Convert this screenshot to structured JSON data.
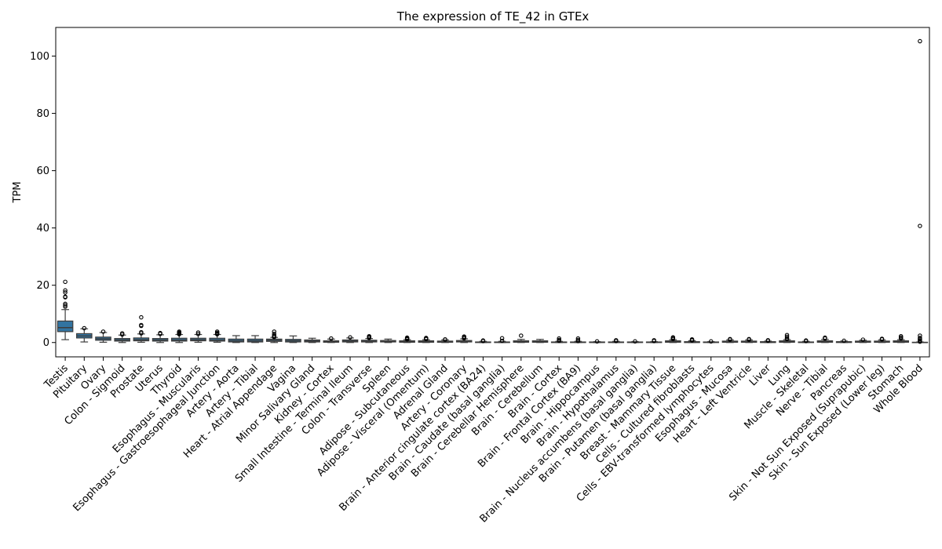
{
  "chart_data": {
    "type": "box",
    "title": "The expression of TE_42 in GTEx",
    "xlabel": "",
    "ylabel": "TPM",
    "ylim": [
      -5,
      110
    ],
    "yticks": [
      0,
      20,
      40,
      60,
      80,
      100
    ],
    "grid": false,
    "box_color": "#3274a1",
    "categories": [
      "Testis",
      "Pituitary",
      "Ovary",
      "Colon - Sigmoid",
      "Prostate",
      "Uterus",
      "Thyroid",
      "Esophagus - Muscularis",
      "Esophagus - Gastroesophageal Junction",
      "Artery - Aorta",
      "Artery - Tibial",
      "Heart - Atrial Appendage",
      "Vagina",
      "Minor Salivary Gland",
      "Kidney - Cortex",
      "Small Intestine - Terminal Ileum",
      "Colon - Transverse",
      "Spleen",
      "Adipose - Subcutaneous",
      "Adipose - Visceral (Omentum)",
      "Adrenal Gland",
      "Artery - Coronary",
      "Brain - Anterior cingulate cortex (BA24)",
      "Brain - Caudate (basal ganglia)",
      "Brain - Cerebellar Hemisphere",
      "Brain - Cerebellum",
      "Brain - Cortex",
      "Brain - Frontal Cortex (BA9)",
      "Brain - Hippocampus",
      "Brain - Hypothalamus",
      "Brain - Nucleus accumbens (basal ganglia)",
      "Brain - Putamen (basal ganglia)",
      "Breast - Mammary Tissue",
      "Cells - Cultured fibroblasts",
      "Cells - EBV-transformed lymphocytes",
      "Esophagus - Mucosa",
      "Heart - Left Ventricle",
      "Liver",
      "Lung",
      "Muscle - Skeletal",
      "Nerve - Tibial",
      "Pancreas",
      "Skin - Not Sun Exposed (Suprapubic)",
      "Skin - Sun Exposed (Lower leg)",
      "Stomach",
      "Whole Blood"
    ],
    "boxes": [
      {
        "whislo": 1.0,
        "q1": 3.8,
        "med": 5.2,
        "q3": 7.5,
        "whishi": 11.5,
        "fliers": [
          12.5,
          13.0,
          13.5,
          15.8,
          16.0,
          17.5,
          18.2,
          21.2
        ]
      },
      {
        "whislo": 0.2,
        "q1": 1.6,
        "med": 2.3,
        "q3": 3.1,
        "whishi": 4.8,
        "fliers": [
          5.0
        ]
      },
      {
        "whislo": 0.1,
        "q1": 0.8,
        "med": 1.3,
        "q3": 1.9,
        "whishi": 3.5,
        "fliers": [
          3.8
        ]
      },
      {
        "whislo": 0.0,
        "q1": 0.5,
        "med": 0.9,
        "q3": 1.4,
        "whishi": 2.6,
        "fliers": [
          2.8,
          3.2
        ]
      },
      {
        "whislo": 0.1,
        "q1": 0.6,
        "med": 1.0,
        "q3": 1.6,
        "whishi": 3.0,
        "fliers": [
          3.2,
          3.6,
          5.8,
          6.1,
          8.8
        ]
      },
      {
        "whislo": 0.0,
        "q1": 0.5,
        "med": 0.9,
        "q3": 1.4,
        "whishi": 2.7,
        "fliers": [
          3.0,
          3.3
        ]
      },
      {
        "whislo": 0.0,
        "q1": 0.5,
        "med": 0.9,
        "q3": 1.5,
        "whishi": 2.8,
        "fliers": [
          2.9,
          3.1,
          3.3,
          3.5,
          3.8
        ]
      },
      {
        "whislo": 0.1,
        "q1": 0.6,
        "med": 1.0,
        "q3": 1.5,
        "whishi": 2.8,
        "fliers": [
          3.0,
          3.5
        ]
      },
      {
        "whislo": 0.1,
        "q1": 0.5,
        "med": 0.9,
        "q3": 1.5,
        "whishi": 2.8,
        "fliers": [
          2.9,
          3.1,
          3.4,
          3.8
        ]
      },
      {
        "whislo": 0.0,
        "q1": 0.2,
        "med": 0.6,
        "q3": 1.2,
        "whishi": 2.4,
        "fliers": []
      },
      {
        "whislo": 0.0,
        "q1": 0.2,
        "med": 0.6,
        "q3": 1.2,
        "whishi": 2.4,
        "fliers": []
      },
      {
        "whislo": 0.0,
        "q1": 0.4,
        "med": 0.8,
        "q3": 1.2,
        "whishi": 1.8,
        "fliers": [
          1.9,
          2.1,
          2.4,
          3.0,
          3.8
        ]
      },
      {
        "whislo": 0.0,
        "q1": 0.2,
        "med": 0.6,
        "q3": 1.1,
        "whishi": 2.3,
        "fliers": []
      },
      {
        "whislo": 0.0,
        "q1": 0.2,
        "med": 0.5,
        "q3": 0.9,
        "whishi": 1.5,
        "fliers": []
      },
      {
        "whislo": 0.0,
        "q1": 0.1,
        "med": 0.3,
        "q3": 0.6,
        "whishi": 1.2,
        "fliers": [
          1.4
        ]
      },
      {
        "whislo": 0.0,
        "q1": 0.2,
        "med": 0.5,
        "q3": 0.9,
        "whishi": 1.6,
        "fliers": [
          1.8
        ]
      },
      {
        "whislo": 0.0,
        "q1": 0.2,
        "med": 0.4,
        "q3": 0.8,
        "whishi": 1.4,
        "fliers": [
          1.6,
          1.8,
          2.0,
          2.2
        ]
      },
      {
        "whislo": 0.0,
        "q1": 0.2,
        "med": 0.4,
        "q3": 0.7,
        "whishi": 1.2,
        "fliers": []
      },
      {
        "whislo": 0.0,
        "q1": 0.1,
        "med": 0.3,
        "q3": 0.6,
        "whishi": 1.0,
        "fliers": [
          1.1,
          1.3,
          1.5,
          1.7
        ]
      },
      {
        "whislo": 0.0,
        "q1": 0.1,
        "med": 0.3,
        "q3": 0.6,
        "whishi": 1.0,
        "fliers": [
          1.2,
          1.4,
          1.6
        ]
      },
      {
        "whislo": 0.0,
        "q1": 0.1,
        "med": 0.3,
        "q3": 0.5,
        "whishi": 0.9,
        "fliers": [
          1.0,
          1.1
        ]
      },
      {
        "whislo": 0.0,
        "q1": 0.2,
        "med": 0.4,
        "q3": 0.7,
        "whishi": 1.3,
        "fliers": [
          1.5,
          1.8,
          2.1
        ]
      },
      {
        "whislo": 0.0,
        "q1": 0.0,
        "med": 0.1,
        "q3": 0.2,
        "whishi": 0.4,
        "fliers": [
          0.5,
          0.7
        ]
      },
      {
        "whislo": 0.0,
        "q1": 0.0,
        "med": 0.1,
        "q3": 0.2,
        "whishi": 0.4,
        "fliers": [
          0.6,
          1.5
        ]
      },
      {
        "whislo": 0.0,
        "q1": 0.1,
        "med": 0.3,
        "q3": 0.6,
        "whishi": 1.1,
        "fliers": [
          2.4
        ]
      },
      {
        "whislo": 0.0,
        "q1": 0.1,
        "med": 0.3,
        "q3": 0.6,
        "whishi": 1.1,
        "fliers": []
      },
      {
        "whislo": 0.0,
        "q1": 0.0,
        "med": 0.1,
        "q3": 0.2,
        "whishi": 0.4,
        "fliers": [
          0.6,
          0.9,
          1.4
        ]
      },
      {
        "whislo": 0.0,
        "q1": 0.0,
        "med": 0.1,
        "q3": 0.2,
        "whishi": 0.4,
        "fliers": [
          0.5,
          0.9,
          1.4
        ]
      },
      {
        "whislo": 0.0,
        "q1": 0.0,
        "med": 0.1,
        "q3": 0.2,
        "whishi": 0.3,
        "fliers": [
          0.4
        ]
      },
      {
        "whislo": 0.0,
        "q1": 0.0,
        "med": 0.1,
        "q3": 0.2,
        "whishi": 0.4,
        "fliers": [
          0.5,
          0.8
        ]
      },
      {
        "whislo": 0.0,
        "q1": 0.0,
        "med": 0.1,
        "q3": 0.2,
        "whishi": 0.3,
        "fliers": [
          0.4
        ]
      },
      {
        "whislo": 0.0,
        "q1": 0.0,
        "med": 0.1,
        "q3": 0.2,
        "whishi": 0.3,
        "fliers": [
          0.5,
          0.8
        ]
      },
      {
        "whislo": 0.0,
        "q1": 0.1,
        "med": 0.3,
        "q3": 0.6,
        "whishi": 1.0,
        "fliers": [
          1.2,
          1.5,
          1.8
        ]
      },
      {
        "whislo": 0.0,
        "q1": 0.0,
        "med": 0.1,
        "q3": 0.3,
        "whishi": 0.6,
        "fliers": [
          0.7,
          0.9,
          1.1
        ]
      },
      {
        "whislo": 0.0,
        "q1": 0.0,
        "med": 0.1,
        "q3": 0.2,
        "whishi": 0.3,
        "fliers": [
          0.4
        ]
      },
      {
        "whislo": 0.0,
        "q1": 0.1,
        "med": 0.2,
        "q3": 0.5,
        "whishi": 0.9,
        "fliers": [
          1.0,
          1.2
        ]
      },
      {
        "whislo": 0.0,
        "q1": 0.1,
        "med": 0.2,
        "q3": 0.5,
        "whishi": 0.9,
        "fliers": [
          1.0,
          1.2
        ]
      },
      {
        "whislo": 0.0,
        "q1": 0.0,
        "med": 0.1,
        "q3": 0.3,
        "whishi": 0.5,
        "fliers": [
          0.6,
          0.8
        ]
      },
      {
        "whislo": 0.0,
        "q1": 0.1,
        "med": 0.3,
        "q3": 0.6,
        "whishi": 1.0,
        "fliers": [
          1.2,
          1.5,
          2.0,
          2.6
        ]
      },
      {
        "whislo": 0.0,
        "q1": 0.0,
        "med": 0.1,
        "q3": 0.2,
        "whishi": 0.4,
        "fliers": [
          0.5,
          0.7
        ]
      },
      {
        "whislo": 0.0,
        "q1": 0.1,
        "med": 0.3,
        "q3": 0.6,
        "whishi": 1.1,
        "fliers": [
          1.4,
          1.7
        ]
      },
      {
        "whislo": 0.0,
        "q1": 0.0,
        "med": 0.2,
        "q3": 0.3,
        "whishi": 0.5,
        "fliers": [
          0.6
        ]
      },
      {
        "whislo": 0.0,
        "q1": 0.1,
        "med": 0.2,
        "q3": 0.5,
        "whishi": 0.8,
        "fliers": [
          1.0
        ]
      },
      {
        "whislo": 0.0,
        "q1": 0.1,
        "med": 0.2,
        "q3": 0.5,
        "whishi": 0.9,
        "fliers": [
          1.1,
          1.3
        ]
      },
      {
        "whislo": 0.0,
        "q1": 0.1,
        "med": 0.3,
        "q3": 0.6,
        "whishi": 1.0,
        "fliers": [
          1.4,
          1.8,
          2.2
        ]
      },
      {
        "whislo": 0.0,
        "q1": 0.0,
        "med": 0.0,
        "q3": 0.1,
        "whishi": 0.2,
        "fliers": [
          0.3,
          0.5,
          0.8,
          1.2,
          1.6,
          2.4,
          40.7,
          105.2
        ]
      }
    ]
  }
}
